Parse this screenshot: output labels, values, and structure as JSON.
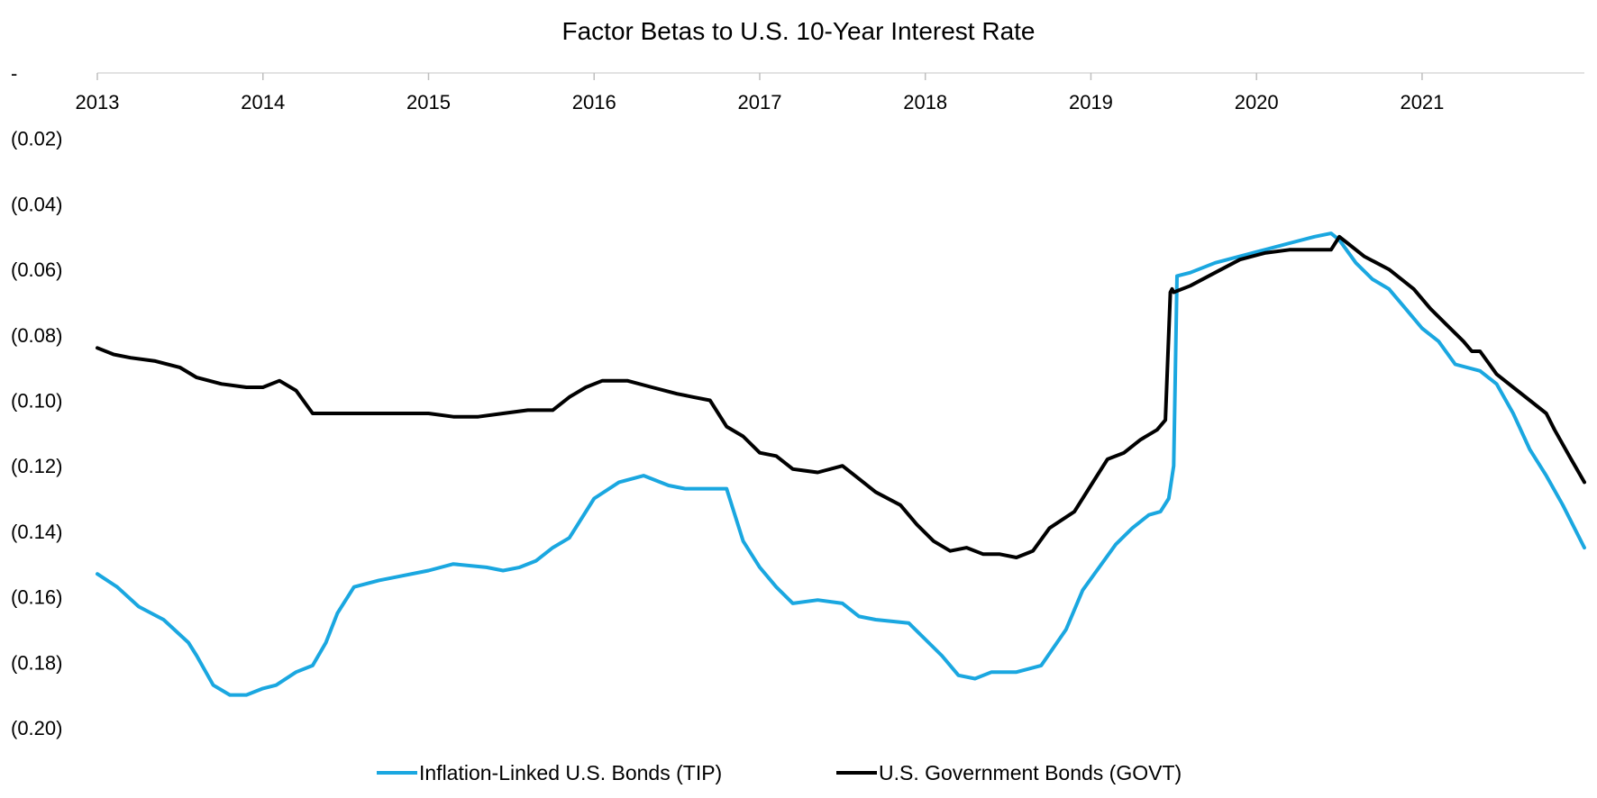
{
  "chart_data": {
    "type": "line",
    "title": "Factor Betas to U.S. 10-Year Interest Rate",
    "x_tick_labels": [
      "2013",
      "2014",
      "2015",
      "2016",
      "2017",
      "2018",
      "2019",
      "2020",
      "2021"
    ],
    "x_ticks": [
      2013,
      2014,
      2015,
      2016,
      2017,
      2018,
      2019,
      2020,
      2021
    ],
    "xlim": [
      2013,
      2021.98
    ],
    "y_tick_labels": [
      "-",
      "(0.02)",
      "(0.04)",
      "(0.06)",
      "(0.08)",
      "(0.10)",
      "(0.12)",
      "(0.14)",
      "(0.16)",
      "(0.18)",
      "(0.20)"
    ],
    "y_ticks": [
      0,
      -0.02,
      -0.04,
      -0.06,
      -0.08,
      -0.1,
      -0.12,
      -0.14,
      -0.16,
      -0.18,
      -0.2
    ],
    "ylim": [
      -0.2,
      0
    ],
    "x_axis_position": "top",
    "grid": false,
    "legend_position": "bottom",
    "series": [
      {
        "name": "Inflation-Linked U.S. Bonds (TIP)",
        "color": "#1aa7e0",
        "x": [
          2013.0,
          2013.12,
          2013.25,
          2013.4,
          2013.55,
          2013.6,
          2013.7,
          2013.8,
          2013.9,
          2014.0,
          2014.08,
          2014.2,
          2014.3,
          2014.38,
          2014.45,
          2014.55,
          2014.7,
          2014.8,
          2015.0,
          2015.15,
          2015.35,
          2015.45,
          2015.55,
          2015.65,
          2015.75,
          2015.85,
          2016.0,
          2016.15,
          2016.3,
          2016.45,
          2016.55,
          2016.7,
          2016.8,
          2016.9,
          2017.0,
          2017.1,
          2017.2,
          2017.35,
          2017.5,
          2017.6,
          2017.7,
          2017.9,
          2018.1,
          2018.2,
          2018.3,
          2018.4,
          2018.55,
          2018.7,
          2018.85,
          2018.95,
          2019.05,
          2019.15,
          2019.25,
          2019.35,
          2019.42,
          2019.47,
          2019.5,
          2019.52,
          2019.6,
          2019.75,
          2019.9,
          2020.05,
          2020.2,
          2020.35,
          2020.45,
          2020.5,
          2020.6,
          2020.7,
          2020.8,
          2020.9,
          2021.0,
          2021.1,
          2021.2,
          2021.35,
          2021.45,
          2021.55,
          2021.65,
          2021.75,
          2021.85,
          2021.98
        ],
        "y": [
          -0.153,
          -0.157,
          -0.163,
          -0.167,
          -0.174,
          -0.178,
          -0.187,
          -0.19,
          -0.19,
          -0.188,
          -0.187,
          -0.183,
          -0.181,
          -0.174,
          -0.165,
          -0.157,
          -0.155,
          -0.154,
          -0.152,
          -0.15,
          -0.151,
          -0.152,
          -0.151,
          -0.149,
          -0.145,
          -0.142,
          -0.13,
          -0.125,
          -0.123,
          -0.126,
          -0.127,
          -0.127,
          -0.127,
          -0.143,
          -0.151,
          -0.157,
          -0.162,
          -0.161,
          -0.162,
          -0.166,
          -0.167,
          -0.168,
          -0.178,
          -0.184,
          -0.185,
          -0.183,
          -0.183,
          -0.181,
          -0.17,
          -0.158,
          -0.151,
          -0.144,
          -0.139,
          -0.135,
          -0.134,
          -0.13,
          -0.12,
          -0.062,
          -0.061,
          -0.058,
          -0.056,
          -0.054,
          -0.052,
          -0.05,
          -0.049,
          -0.051,
          -0.058,
          -0.063,
          -0.066,
          -0.072,
          -0.078,
          -0.082,
          -0.089,
          -0.091,
          -0.095,
          -0.104,
          -0.115,
          -0.123,
          -0.132,
          -0.145
        ]
      },
      {
        "name": "U.S. Government Bonds (GOVT)",
        "color": "#000000",
        "x": [
          2013.0,
          2013.1,
          2013.2,
          2013.35,
          2013.5,
          2013.6,
          2013.75,
          2013.9,
          2014.0,
          2014.1,
          2014.2,
          2014.3,
          2014.4,
          2014.6,
          2014.8,
          2015.0,
          2015.15,
          2015.3,
          2015.45,
          2015.6,
          2015.75,
          2015.85,
          2015.95,
          2016.05,
          2016.2,
          2016.35,
          2016.5,
          2016.6,
          2016.7,
          2016.8,
          2016.9,
          2017.0,
          2017.1,
          2017.2,
          2017.35,
          2017.5,
          2017.6,
          2017.7,
          2017.85,
          2017.95,
          2018.05,
          2018.15,
          2018.25,
          2018.35,
          2018.45,
          2018.55,
          2018.65,
          2018.75,
          2018.9,
          2019.0,
          2019.1,
          2019.2,
          2019.3,
          2019.4,
          2019.45,
          2019.48,
          2019.49,
          2019.5,
          2019.6,
          2019.75,
          2019.9,
          2020.05,
          2020.2,
          2020.35,
          2020.45,
          2020.5,
          2020.55,
          2020.65,
          2020.8,
          2020.95,
          2021.05,
          2021.15,
          2021.25,
          2021.3,
          2021.35,
          2021.45,
          2021.55,
          2021.65,
          2021.75,
          2021.8,
          2021.9,
          2021.98
        ],
        "y": [
          -0.084,
          -0.086,
          -0.087,
          -0.088,
          -0.09,
          -0.093,
          -0.095,
          -0.096,
          -0.096,
          -0.094,
          -0.097,
          -0.104,
          -0.104,
          -0.104,
          -0.104,
          -0.104,
          -0.105,
          -0.105,
          -0.104,
          -0.103,
          -0.103,
          -0.099,
          -0.096,
          -0.094,
          -0.094,
          -0.096,
          -0.098,
          -0.099,
          -0.1,
          -0.108,
          -0.111,
          -0.116,
          -0.117,
          -0.121,
          -0.122,
          -0.12,
          -0.124,
          -0.128,
          -0.132,
          -0.138,
          -0.143,
          -0.146,
          -0.145,
          -0.147,
          -0.147,
          -0.148,
          -0.146,
          -0.139,
          -0.134,
          -0.126,
          -0.118,
          -0.116,
          -0.112,
          -0.109,
          -0.106,
          -0.067,
          -0.066,
          -0.067,
          -0.065,
          -0.061,
          -0.057,
          -0.055,
          -0.054,
          -0.054,
          -0.054,
          -0.05,
          -0.052,
          -0.056,
          -0.06,
          -0.066,
          -0.072,
          -0.077,
          -0.082,
          -0.085,
          -0.085,
          -0.092,
          -0.096,
          -0.1,
          -0.104,
          -0.109,
          -0.118,
          -0.125
        ]
      }
    ]
  }
}
